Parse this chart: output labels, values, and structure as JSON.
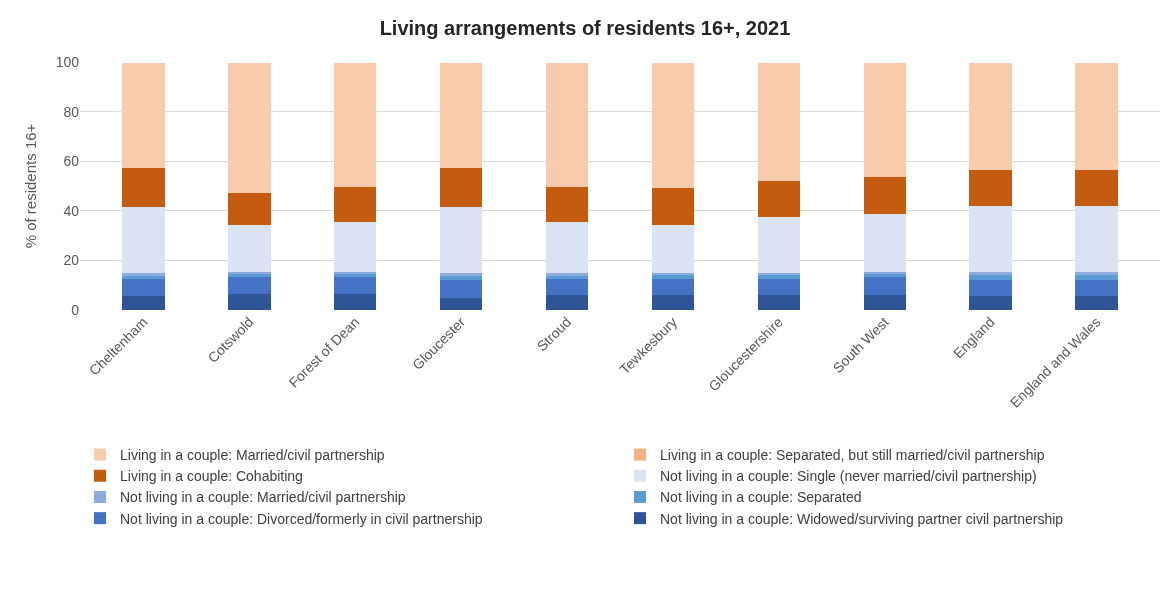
{
  "chart_data": {
    "type": "bar",
    "stacked": true,
    "title": "Living arrangements of residents 16+, 2021",
    "ylabel": "% of residents 16+",
    "categories": [
      "Cheltenham",
      "Cotswold",
      "Forest of Dean",
      "Gloucester",
      "Stroud",
      "Tewkesbury",
      "Gloucestershire",
      "South West",
      "England",
      "England and Wales"
    ],
    "series": [
      {
        "name": "Not living in a couple: Widowed/surviving partner civil partnership",
        "color": "#2f5597",
        "values": [
          5.5,
          6.6,
          6.6,
          4.8,
          6.0,
          6.1,
          6.1,
          6.1,
          5.5,
          5.5
        ]
      },
      {
        "name": "Not living in a couple: Divorced/formerly in civil partnership",
        "color": "#4472c4",
        "values": [
          7.2,
          6.9,
          6.7,
          7.3,
          6.7,
          6.6,
          6.6,
          7.4,
          6.6,
          6.6
        ]
      },
      {
        "name": "Not living in a couple: Separated",
        "color": "#5b9bd5",
        "values": [
          1.3,
          1.1,
          1.2,
          1.7,
          1.2,
          1.3,
          1.3,
          1.1,
          1.9,
          1.9
        ]
      },
      {
        "name": "Not living in a couple: Married/civil partnership",
        "color": "#8faadc",
        "values": [
          0.8,
          0.8,
          0.9,
          1.2,
          0.9,
          1.0,
          1.0,
          0.8,
          1.4,
          1.4
        ]
      },
      {
        "name": "Not living in a couple: Single (never married/civil partnership)",
        "color": "#dae3f3",
        "values": [
          26.7,
          18.9,
          20.1,
          26.5,
          20.7,
          19.3,
          22.5,
          23.4,
          26.7,
          26.7
        ]
      },
      {
        "name": "Living in a couple: Cohabiting",
        "color": "#c55a11",
        "values": [
          15.6,
          12.8,
          14.3,
          15.6,
          14.3,
          14.9,
          14.5,
          14.9,
          14.4,
          14.4
        ]
      },
      {
        "name": "Living in a couple: Separated, but still married/civil partnership",
        "color": "#f4b183",
        "values": [
          null,
          null,
          null,
          null,
          null,
          null,
          null,
          null,
          null,
          null
        ]
      },
      {
        "name": "Living in a couple: Married/civil partnership",
        "color": "#f8cbad",
        "values": [
          42.6,
          52.6,
          49.9,
          42.6,
          49.9,
          50.5,
          47.7,
          46.0,
          43.2,
          43.2
        ]
      }
    ],
    "ylim": [
      0,
      100
    ],
    "yticks": [
      0,
      20,
      40,
      60,
      80,
      100
    ],
    "grid": "y",
    "legend": "bottom"
  }
}
